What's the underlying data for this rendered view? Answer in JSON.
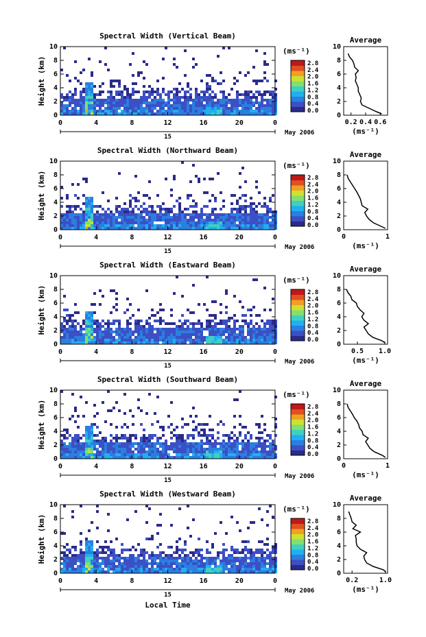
{
  "chart_data": [
    {
      "type": "heatmap",
      "title": "Spectral Width (Vertical Beam)",
      "ylabel": "Height (km)",
      "x_ticks": [
        "0",
        "4",
        "8",
        "12",
        "16",
        "20",
        "0"
      ],
      "y_ticks": [
        "0",
        "2",
        "4",
        "6",
        "8",
        "10"
      ],
      "xlim": [
        0,
        24
      ],
      "ylim": [
        0,
        10
      ],
      "day_label": "15",
      "month_label": "May 2006",
      "colorbar": {
        "unit": "(ms⁻¹)",
        "ticks": [
          "2.8",
          "2.4",
          "2.0",
          "1.6",
          "1.2",
          "0.8",
          "0.4",
          "0.0"
        ]
      },
      "profile": {
        "title": "Average",
        "xlabel": "(ms⁻¹)",
        "x_ticks": [
          "0.2",
          "0.4",
          "0.6"
        ],
        "xlim": [
          0.1,
          0.7
        ],
        "y_ticks": [
          "0",
          "2",
          "4",
          "6",
          "8",
          "10"
        ],
        "height": [
          0.2,
          0.5,
          1.0,
          1.5,
          2.0,
          2.5,
          3.0,
          3.5,
          4.0,
          4.5,
          5.0,
          5.5,
          6.0,
          6.5,
          7.0,
          7.5,
          8.0,
          8.5,
          9.0
        ],
        "value": [
          0.62,
          0.55,
          0.45,
          0.35,
          0.33,
          0.34,
          0.32,
          0.3,
          0.3,
          0.28,
          0.26,
          0.27,
          0.26,
          0.3,
          0.25,
          0.24,
          0.22,
          0.18,
          0.16
        ]
      }
    },
    {
      "type": "heatmap",
      "title": "Spectral Width (Northward Beam)",
      "ylabel": "Height (km)",
      "x_ticks": [
        "0",
        "4",
        "8",
        "12",
        "16",
        "20",
        "0"
      ],
      "y_ticks": [
        "0",
        "2",
        "4",
        "6",
        "8",
        "10"
      ],
      "xlim": [
        0,
        24
      ],
      "ylim": [
        0,
        10
      ],
      "day_label": "15",
      "month_label": "May 2006",
      "colorbar": {
        "unit": "(ms⁻¹)",
        "ticks": [
          "2.8",
          "2.4",
          "2.0",
          "1.6",
          "1.2",
          "0.8",
          "0.4",
          "0.0"
        ]
      },
      "profile": {
        "title": "Average",
        "xlabel": "(ms⁻¹)",
        "x_ticks": [
          "0",
          "1"
        ],
        "xlim": [
          0,
          1
        ],
        "y_ticks": [
          "0",
          "2",
          "4",
          "6",
          "8",
          "10"
        ],
        "height": [
          0.2,
          0.5,
          1.0,
          1.5,
          2.0,
          2.5,
          3.0,
          3.5,
          4.0,
          4.5,
          5.0,
          5.5,
          6.0,
          6.5,
          7.0,
          7.5,
          8.0
        ],
        "value": [
          0.95,
          0.85,
          0.68,
          0.58,
          0.52,
          0.48,
          0.55,
          0.42,
          0.4,
          0.38,
          0.34,
          0.3,
          0.25,
          0.2,
          0.15,
          0.1,
          0.08
        ]
      }
    },
    {
      "type": "heatmap",
      "title": "Spectral Width (Eastward Beam)",
      "ylabel": "Height (km)",
      "x_ticks": [
        "0",
        "4",
        "8",
        "12",
        "16",
        "20",
        "0"
      ],
      "y_ticks": [
        "0",
        "2",
        "4",
        "6",
        "8",
        "10"
      ],
      "xlim": [
        0,
        24
      ],
      "ylim": [
        0,
        10
      ],
      "day_label": "15",
      "month_label": "May 2006",
      "colorbar": {
        "unit": "(ms⁻¹)",
        "ticks": [
          "2.8",
          "2.4",
          "2.0",
          "1.6",
          "1.2",
          "0.8",
          "0.4",
          "0.0"
        ]
      },
      "profile": {
        "title": "Average",
        "xlabel": "(ms⁻¹)",
        "x_ticks": [
          "0.5",
          "1.0"
        ],
        "xlim": [
          0.25,
          1.05
        ],
        "y_ticks": [
          "0",
          "2",
          "4",
          "6",
          "8",
          "10"
        ],
        "height": [
          0.2,
          0.5,
          1.0,
          1.5,
          2.0,
          2.5,
          3.0,
          3.5,
          4.0,
          4.5,
          5.0,
          5.5,
          6.0,
          6.5,
          7.0,
          7.5,
          8.0
        ],
        "value": [
          1.0,
          0.95,
          0.78,
          0.7,
          0.66,
          0.62,
          0.7,
          0.62,
          0.58,
          0.62,
          0.55,
          0.5,
          0.48,
          0.4,
          0.38,
          0.33,
          0.3
        ]
      }
    },
    {
      "type": "heatmap",
      "title": "Spectral Width (Southward Beam)",
      "ylabel": "Height (km)",
      "x_ticks": [
        "0",
        "4",
        "8",
        "12",
        "16",
        "20",
        "0"
      ],
      "y_ticks": [
        "0",
        "2",
        "4",
        "6",
        "8",
        "10"
      ],
      "xlim": [
        0,
        24
      ],
      "ylim": [
        0,
        10
      ],
      "day_label": "15",
      "month_label": "May 2006",
      "colorbar": {
        "unit": "(ms⁻¹)",
        "ticks": [
          "2.8",
          "2.4",
          "2.0",
          "1.6",
          "1.2",
          "0.8",
          "0.4",
          "0.0"
        ]
      },
      "profile": {
        "title": "Average",
        "xlabel": "(ms⁻¹)",
        "x_ticks": [
          "0",
          "1"
        ],
        "xlim": [
          0,
          1
        ],
        "y_ticks": [
          "0",
          "2",
          "4",
          "6",
          "8",
          "10"
        ],
        "height": [
          0.2,
          0.5,
          1.0,
          1.5,
          2.0,
          2.5,
          3.0,
          3.5,
          4.0,
          4.5,
          5.0,
          5.5,
          6.0,
          6.5,
          7.0,
          7.5,
          8.0
        ],
        "value": [
          0.95,
          0.88,
          0.7,
          0.6,
          0.55,
          0.5,
          0.56,
          0.44,
          0.42,
          0.36,
          0.34,
          0.3,
          0.24,
          0.2,
          0.15,
          0.1,
          0.08
        ]
      }
    },
    {
      "type": "heatmap",
      "title": "Spectral Width (Westward Beam)",
      "ylabel": "Height (km)",
      "x_ticks": [
        "0",
        "4",
        "8",
        "12",
        "16",
        "20",
        "0"
      ],
      "y_ticks": [
        "0",
        "2",
        "4",
        "6",
        "8",
        "10"
      ],
      "xlim": [
        0,
        24
      ],
      "ylim": [
        0,
        10
      ],
      "day_label": "15",
      "month_label": "May 2006",
      "xlabel": "Local Time",
      "colorbar": {
        "unit": "(ms⁻¹)",
        "ticks": [
          "2.8",
          "2.4",
          "2.0",
          "1.6",
          "1.2",
          "0.8",
          "0.4",
          "0.0"
        ]
      },
      "profile": {
        "title": "Average",
        "xlabel": "(ms⁻¹)",
        "x_ticks": [
          "0.2",
          "1.0"
        ],
        "xlim": [
          0.0,
          1.05
        ],
        "y_ticks": [
          "0",
          "2",
          "4",
          "6",
          "8",
          "10"
        ],
        "height": [
          0.2,
          0.5,
          1.0,
          1.5,
          2.0,
          2.5,
          3.0,
          3.5,
          4.0,
          4.5,
          5.0,
          5.5,
          6.0,
          6.5,
          7.0,
          7.5,
          8.0,
          8.5,
          9.0
        ],
        "value": [
          1.0,
          0.95,
          0.7,
          0.55,
          0.5,
          0.48,
          0.55,
          0.4,
          0.32,
          0.3,
          0.3,
          0.28,
          0.4,
          0.22,
          0.3,
          0.2,
          0.18,
          0.15,
          0.12
        ]
      }
    }
  ],
  "colors": {
    "scale": [
      "#2b2b8a",
      "#3c4fc4",
      "#2a7fe0",
      "#20b0f0",
      "#40d0c0",
      "#80e070",
      "#d0e030",
      "#f0a020",
      "#e05020",
      "#c01818"
    ]
  }
}
